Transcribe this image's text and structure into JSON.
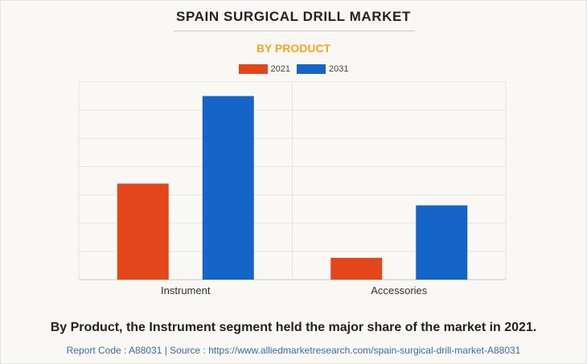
{
  "title": "SPAIN SURGICAL DRILL MARKET",
  "subtitle": "BY PRODUCT",
  "colors": {
    "series_2021": "#e2461a",
    "series_2031": "#1565c8",
    "subtitle": "#f5a623",
    "source": "#3a6ea5"
  },
  "chart_data": {
    "type": "bar",
    "categories": [
      "Instrument",
      "Accessories"
    ],
    "series": [
      {
        "name": "2021",
        "values": [
          34,
          7.7
        ]
      },
      {
        "name": "2031",
        "values": [
          65,
          26.3
        ]
      }
    ],
    "ylim": [
      0,
      70
    ],
    "grid": true,
    "legend_position": "top-center",
    "xlabel": "",
    "ylabel": ""
  },
  "caption": "By Product, the Instrument segment held the major share of the market in 2021.",
  "source": "Report Code : A88031  |  Source : https://www.alliedmarketresearch.com/spain-surgical-drill-market-A88031"
}
